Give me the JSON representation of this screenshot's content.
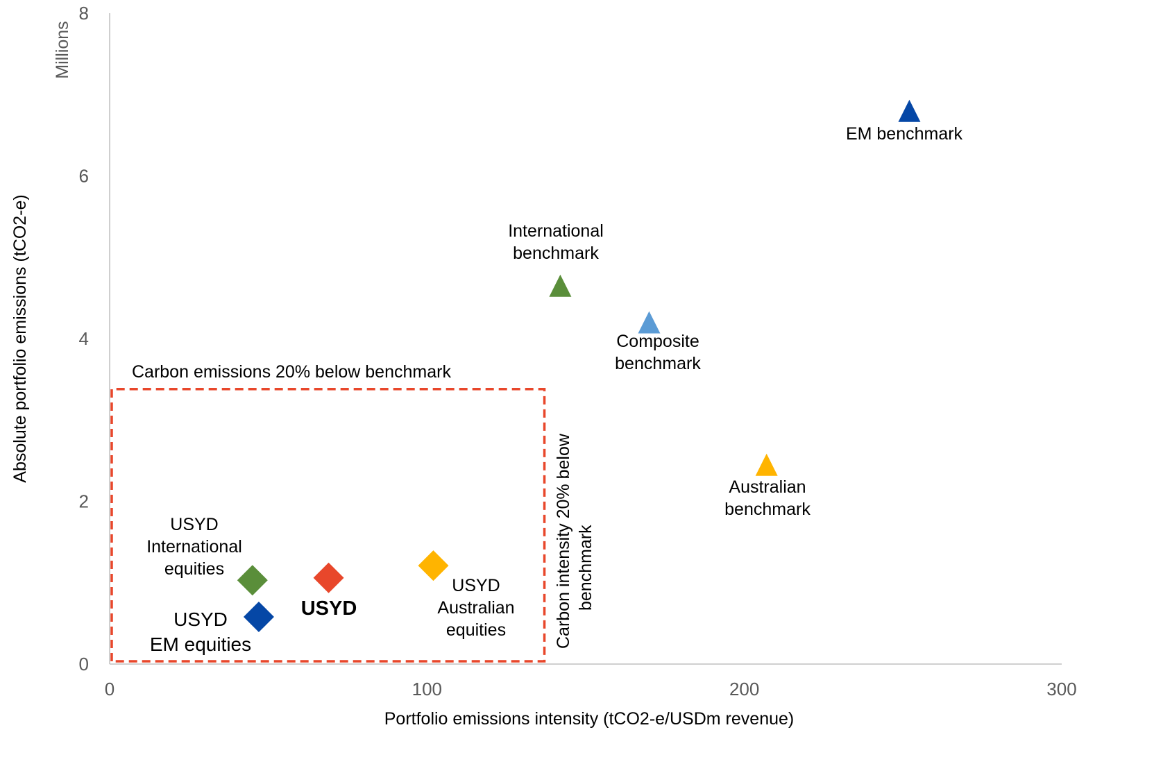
{
  "chart_data": {
    "type": "scatter",
    "xlabel": "Portfolio emissions intensity (tCO2-e/USDm revenue)",
    "ylabel": "Absolute portfolio emissions (tCO2-e)",
    "y_units": "Millions",
    "xlim": [
      0,
      300
    ],
    "ylim": [
      0,
      8
    ],
    "x_ticks": [
      "0",
      "100",
      "200",
      "300"
    ],
    "y_ticks": [
      "0",
      "2",
      "4",
      "6",
      "8"
    ],
    "grid": false,
    "points": [
      {
        "marker": "triangle",
        "color": "#0547A6",
        "x": 252,
        "y": 6.8,
        "label": [
          "EM benchmark"
        ]
      },
      {
        "marker": "triangle",
        "color": "#5A8E3A",
        "x": 142,
        "y": 4.65,
        "label": [
          "International",
          "benchmark"
        ]
      },
      {
        "marker": "triangle",
        "color": "#5B9BD5",
        "x": 170,
        "y": 4.2,
        "label": [
          "Composite",
          "benchmark"
        ]
      },
      {
        "marker": "triangle",
        "color": "#FFB400",
        "x": 207,
        "y": 2.45,
        "label": [
          "Australian",
          "benchmark"
        ]
      },
      {
        "marker": "diamond",
        "color": "#5A8E3A",
        "x": 45,
        "y": 1.03,
        "label": [
          "USYD",
          "International",
          "equities"
        ]
      },
      {
        "marker": "diamond",
        "color": "#E8472B",
        "x": 69,
        "y": 1.06,
        "label": [
          "USYD"
        ]
      },
      {
        "marker": "diamond",
        "color": "#FFB400",
        "x": 102,
        "y": 1.21,
        "label": [
          "USYD",
          "Australian",
          "equities"
        ]
      },
      {
        "marker": "diamond",
        "color": "#0547A6",
        "x": 47,
        "y": 0.58,
        "label": [
          "USYD",
          "EM equities"
        ]
      }
    ],
    "region": {
      "x": [
        0,
        137
      ],
      "y": [
        0,
        3.38
      ],
      "color": "#E8472B",
      "style": "dashed",
      "top_label": "Carbon emissions 20% below benchmark",
      "side_label": [
        "Carbon intensity 20% below",
        "benchmark"
      ]
    }
  }
}
